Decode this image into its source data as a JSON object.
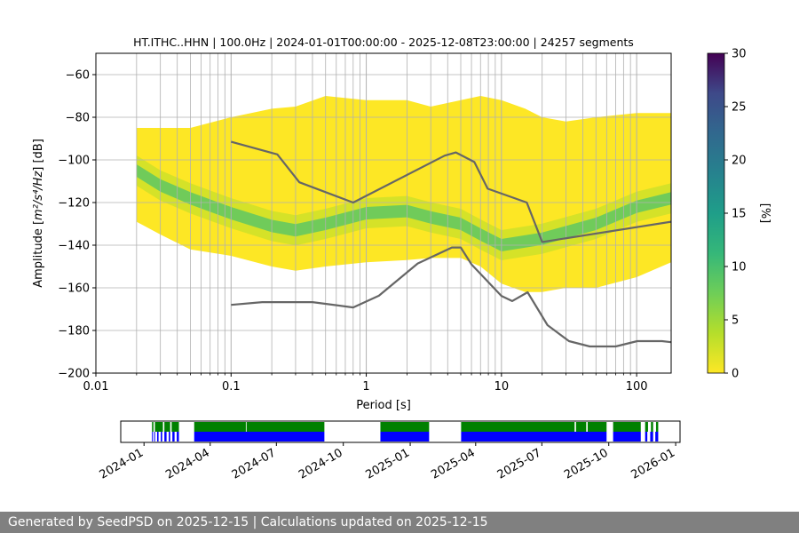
{
  "chart_data": [
    {
      "type": "heatmap",
      "title": "HT.ITHC..HHN | 100.0Hz | 2024-01-01T00:00:00 - 2025-12-08T23:00:00 | 24257 segments",
      "xlabel": "Period [s]",
      "ylabel_text": "Amplitude [",
      "ylabel_units": "m²/s⁴/Hz",
      "ylabel_suffix": "] [dB]",
      "x_scale": "log",
      "xlim": [
        0.01,
        180
      ],
      "ylim": [
        -200,
        -50
      ],
      "x_ticks": [
        0.01,
        0.1,
        1,
        10,
        100
      ],
      "x_tick_labels": [
        "0.01",
        "0.1",
        "1",
        "10",
        "100"
      ],
      "y_ticks": [
        -200,
        -180,
        -160,
        -140,
        -120,
        -100,
        -80,
        -60
      ],
      "y_tick_labels": [
        "−200",
        "−180",
        "−160",
        "−140",
        "−120",
        "−100",
        "−80",
        "−60"
      ],
      "grid": true,
      "colormap": "viridis_r",
      "colorbar": {
        "label": "[%]",
        "range": [
          0,
          30
        ],
        "ticks": [
          0,
          5,
          10,
          15,
          20,
          25,
          30
        ],
        "tick_labels": [
          "0",
          "5",
          "10",
          "15",
          "20",
          "25",
          "30"
        ]
      },
      "psd_envelope": {
        "period": [
          0.02,
          0.03,
          0.05,
          0.1,
          0.2,
          0.3,
          0.5,
          1,
          2,
          3,
          5,
          7,
          10,
          15,
          20,
          30,
          50,
          100,
          180
        ],
        "upper_db": [
          -85,
          -85,
          -85,
          -80,
          -76,
          -75,
          -70,
          -72,
          -72,
          -75,
          -72,
          -70,
          -72,
          -76,
          -80,
          -82,
          -80,
          -78,
          -78
        ],
        "lower_db": [
          -129,
          -135,
          -142,
          -145,
          -150,
          -152,
          -150,
          -148,
          -147,
          -146,
          -146,
          -150,
          -158,
          -162,
          -162,
          -160,
          -160,
          -155,
          -148
        ]
      },
      "psd_mode": {
        "period": [
          0.02,
          0.03,
          0.05,
          0.1,
          0.2,
          0.3,
          0.5,
          1,
          2,
          3,
          5,
          7,
          10,
          20,
          50,
          100,
          180
        ],
        "db": [
          -105,
          -112,
          -118,
          -125,
          -131,
          -133,
          -130,
          -125,
          -124,
          -127,
          -130,
          -135,
          -140,
          -137,
          -130,
          -122,
          -118
        ]
      },
      "noise_models": [
        {
          "period": [
            0.1,
            0.17,
            0.4,
            0.8,
            1.24,
            2.4,
            4.3,
            5,
            6,
            10,
            12,
            15.6,
            21.9,
            31.6,
            45,
            70,
            101,
            154,
            180
          ],
          "db": [
            -168,
            -166.7,
            -166.7,
            -169.2,
            -163.7,
            -148.6,
            -141.1,
            -141.1,
            -149,
            -163.8,
            -166.2,
            -162.1,
            -177.5,
            -185,
            -187.5,
            -187.5,
            -185,
            -185,
            -185.5
          ]
        },
        {
          "period": [
            0.1,
            0.22,
            0.32,
            0.8,
            3.8,
            4.6,
            6.3,
            7.9,
            15.4,
            20,
            180
          ],
          "db": [
            -91.5,
            -97.4,
            -110.5,
            -120,
            -98,
            -96.5,
            -101,
            -113.5,
            -120,
            -138.5,
            -129
          ]
        }
      ]
    },
    {
      "type": "timeline",
      "x_tick_labels": [
        "2024-01",
        "2024-04",
        "2024-07",
        "2024-10",
        "2025-01",
        "2025-04",
        "2025-07",
        "2025-10",
        "2026-01"
      ],
      "x_tick_dates": [
        "2024-01-01",
        "2024-04-01",
        "2024-07-01",
        "2024-10-01",
        "2025-01-01",
        "2025-04-01",
        "2025-07-01",
        "2025-10-01",
        "2026-01-01"
      ],
      "xlim": [
        "2023-11-30",
        "2026-01-07"
      ],
      "series": [
        {
          "color": "#008000",
          "intervals": [
            [
              "2024-01-12",
              "2024-01-14"
            ],
            [
              "2024-01-16",
              "2024-01-27"
            ],
            [
              "2024-01-29",
              "2024-02-06"
            ],
            [
              "2024-02-08",
              "2024-02-18"
            ],
            [
              "2024-03-10",
              "2024-05-20"
            ],
            [
              "2024-05-21",
              "2024-09-05"
            ],
            [
              "2024-11-21",
              "2025-01-27"
            ],
            [
              "2025-03-12",
              "2025-08-15"
            ],
            [
              "2025-08-17",
              "2025-08-31"
            ],
            [
              "2025-09-02",
              "2025-09-28"
            ],
            [
              "2025-10-07",
              "2025-11-14"
            ],
            [
              "2025-11-20",
              "2025-11-24"
            ],
            [
              "2025-11-28",
              "2025-12-01"
            ],
            [
              "2025-12-05",
              "2025-12-08"
            ]
          ]
        },
        {
          "color": "#0000ff",
          "intervals": [
            [
              "2024-01-12",
              "2024-01-13"
            ],
            [
              "2024-01-15",
              "2024-01-16"
            ],
            [
              "2024-01-19",
              "2024-01-21"
            ],
            [
              "2024-01-24",
              "2024-01-26"
            ],
            [
              "2024-01-29",
              "2024-02-01"
            ],
            [
              "2024-02-04",
              "2024-02-06"
            ],
            [
              "2024-02-09",
              "2024-02-12"
            ],
            [
              "2024-02-15",
              "2024-02-18"
            ],
            [
              "2024-03-10",
              "2024-09-05"
            ],
            [
              "2024-11-21",
              "2025-01-27"
            ],
            [
              "2025-03-12",
              "2025-09-28"
            ],
            [
              "2025-10-07",
              "2025-11-14"
            ],
            [
              "2025-11-20",
              "2025-11-23"
            ],
            [
              "2025-11-27",
              "2025-12-01"
            ],
            [
              "2025-12-04",
              "2025-12-08"
            ]
          ]
        }
      ]
    }
  ],
  "footer": {
    "text": "Generated by SeedPSD on 2025-12-15 | Calculations updated on 2025-12-15"
  }
}
